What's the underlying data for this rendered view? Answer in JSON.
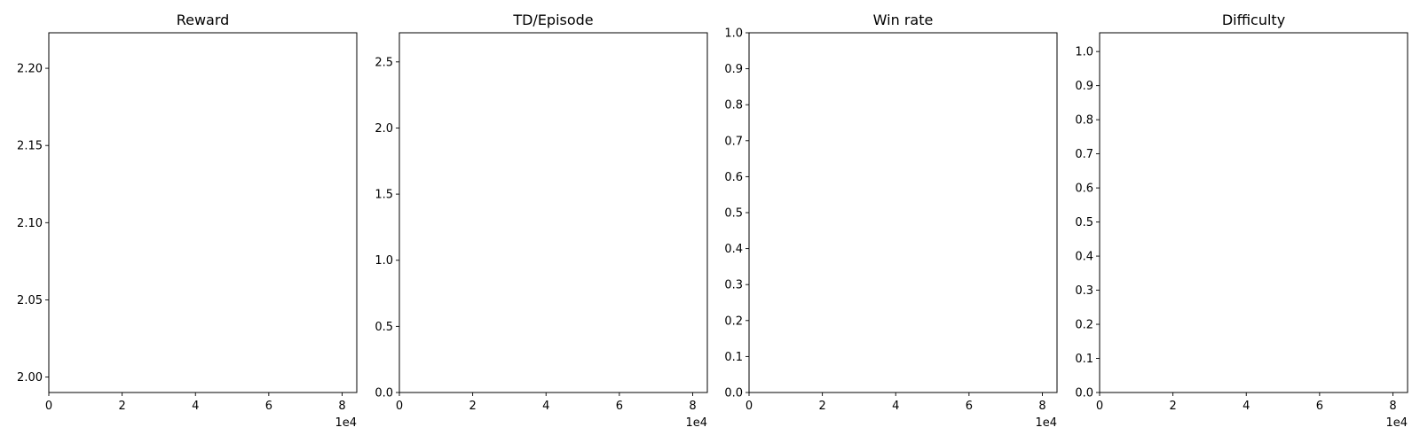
{
  "chart_data": [
    {
      "type": "line",
      "title": "Reward",
      "xlim": [
        0,
        84000
      ],
      "ylim": [
        1.99,
        2.223
      ],
      "x_ticks": [
        0,
        20000,
        40000,
        60000,
        80000
      ],
      "x_tick_labels": [
        "0",
        "2",
        "4",
        "6",
        "8"
      ],
      "x_offset_label": "1e4",
      "y_ticks": [
        2.0,
        2.05,
        2.1,
        2.15,
        2.2
      ],
      "y_tick_labels": [
        "2.00",
        "2.05",
        "2.10",
        "2.15",
        "2.20"
      ],
      "series": []
    },
    {
      "type": "line",
      "title": "TD/Episode",
      "xlim": [
        0,
        84000
      ],
      "ylim": [
        0,
        2.72
      ],
      "x_ticks": [
        0,
        20000,
        40000,
        60000,
        80000
      ],
      "x_tick_labels": [
        "0",
        "2",
        "4",
        "6",
        "8"
      ],
      "x_offset_label": "1e4",
      "y_ticks": [
        0.0,
        0.5,
        1.0,
        1.5,
        2.0,
        2.5
      ],
      "y_tick_labels": [
        "0.0",
        "0.5",
        "1.0",
        "1.5",
        "2.0",
        "2.5"
      ],
      "series": []
    },
    {
      "type": "line",
      "title": "Win rate",
      "xlim": [
        0,
        84000
      ],
      "ylim": [
        0,
        1.0
      ],
      "x_ticks": [
        0,
        20000,
        40000,
        60000,
        80000
      ],
      "x_tick_labels": [
        "0",
        "2",
        "4",
        "6",
        "8"
      ],
      "x_offset_label": "1e4",
      "y_ticks": [
        0.0,
        0.1,
        0.2,
        0.3,
        0.4,
        0.5,
        0.6,
        0.7,
        0.8,
        0.9,
        1.0
      ],
      "y_tick_labels": [
        "0.0",
        "0.1",
        "0.2",
        "0.3",
        "0.4",
        "0.5",
        "0.6",
        "0.7",
        "0.8",
        "0.9",
        "1.0"
      ],
      "series": []
    },
    {
      "type": "line",
      "title": "Difficulty",
      "xlim": [
        0,
        84000
      ],
      "ylim": [
        0,
        1.055
      ],
      "x_ticks": [
        0,
        20000,
        40000,
        60000,
        80000
      ],
      "x_tick_labels": [
        "0",
        "2",
        "4",
        "6",
        "8"
      ],
      "x_offset_label": "1e4",
      "y_ticks": [
        0.0,
        0.1,
        0.2,
        0.3,
        0.4,
        0.5,
        0.6,
        0.7,
        0.8,
        0.9,
        1.0
      ],
      "y_tick_labels": [
        "0.0",
        "0.1",
        "0.2",
        "0.3",
        "0.4",
        "0.5",
        "0.6",
        "0.7",
        "0.8",
        "0.9",
        "1.0"
      ],
      "series": []
    }
  ]
}
